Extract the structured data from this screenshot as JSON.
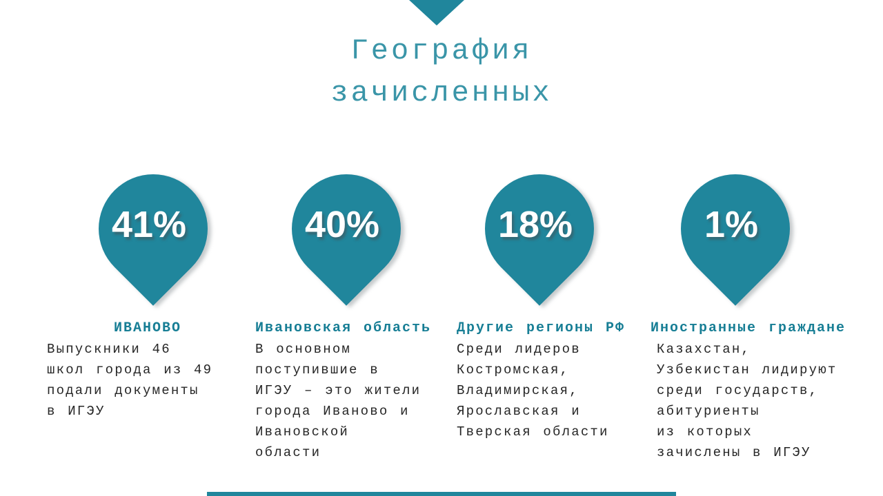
{
  "slide": {
    "title_line1": "География",
    "title_line2": "зачисленных",
    "colors": {
      "pin_teal": "#20869c",
      "title_teal": "#3a95a8",
      "header_teal": "#177e95",
      "body_text": "#262626",
      "percent_text": "#ffffff",
      "background": "#ffffff"
    }
  },
  "groups": [
    {
      "percent": "41%",
      "header": "ИВАНОВО",
      "body": "Выпускники 46\nшкол города из 49\nподали документы\nв ИГЭУ"
    },
    {
      "percent": "40%",
      "header": "Ивановская область",
      "body": "В основном\nпоступившие в\nИГЭУ – это жители\nгорода Иваново и\nИвановской\nобласти"
    },
    {
      "percent": "18%",
      "header": "Другие регионы РФ",
      "body": "Среди лидеров\nКостромская,\nВладимирская,\nЯрославская и\nТверская области"
    },
    {
      "percent": "1%",
      "header": "Иностранные граждане",
      "body": "Казахстан,\nУзбекистан лидируют\nсреди государств,\nабитуриенты\nиз которых\nзачислены в ИГЭУ"
    }
  ]
}
